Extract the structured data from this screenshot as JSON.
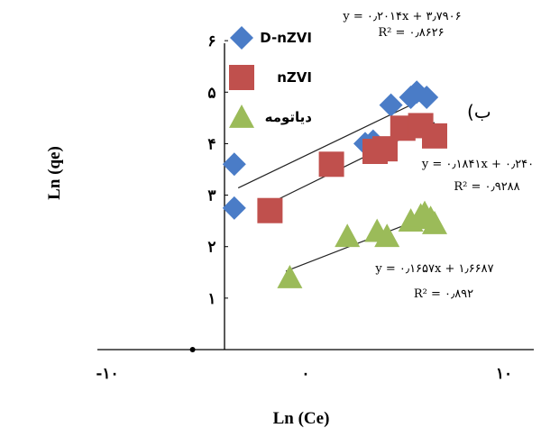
{
  "chart_data": {
    "type": "scatter",
    "title": "",
    "xlabel": "Ln (Ce)",
    "ylabel": "Ln (qe)",
    "xlim": [
      -10.5,
      11.5
    ],
    "ylim": [
      0,
      6.3
    ],
    "panel_label": "(ب",
    "x_tick_labels": [
      "-۱۰",
      "۰",
      "۱۰"
    ],
    "x_ticks": [
      -10,
      0,
      10
    ],
    "y_tick_labels": [
      "۱",
      "۲",
      "۳",
      "۴",
      "۵",
      "۶"
    ],
    "y_ticks": [
      1,
      2,
      3,
      4,
      5,
      6
    ],
    "origin_marker": [
      -5.7,
      0
    ],
    "legend_position": "top-left",
    "series": [
      {
        "name": "D-nZVI",
        "marker": "diamond",
        "color": "#4a7cc7",
        "points": [
          [
            -3.6,
            2.75
          ],
          [
            -3.6,
            3.6
          ],
          [
            3.0,
            4.0
          ],
          [
            3.4,
            4.05
          ],
          [
            4.3,
            4.75
          ],
          [
            5.3,
            4.9
          ],
          [
            5.6,
            5.0
          ],
          [
            6.1,
            4.9
          ]
        ],
        "fit": {
          "equation": "y = ۰٫۲۰۱۴x + ۳٫۷۹۰۶",
          "r2": "R² = ۰٫۸۶۲۶",
          "x_range": [
            -3.4,
            5.8
          ]
        }
      },
      {
        "name": "nZVI",
        "marker": "square",
        "color": "#c0504d",
        "points": [
          [
            -1.8,
            2.7
          ],
          [
            1.3,
            3.6
          ],
          [
            3.5,
            3.85
          ],
          [
            4.0,
            3.9
          ],
          [
            4.9,
            4.3
          ],
          [
            5.8,
            4.35
          ],
          [
            6.5,
            4.15
          ]
        ],
        "fit": {
          "equation": "y = ۰٫۱۸۴۱x + ۰٫۲۴۰",
          "r2": "R² = ۰٫۹۲۸۸",
          "x_range": [
            -1.8,
            6.5
          ]
        }
      },
      {
        "name": "دیاتومه",
        "marker": "triangle",
        "color": "#9bbb59",
        "points": [
          [
            -0.8,
            1.4
          ],
          [
            2.1,
            2.2
          ],
          [
            3.6,
            2.3
          ],
          [
            4.1,
            2.2
          ],
          [
            5.3,
            2.5
          ],
          [
            5.8,
            2.6
          ],
          [
            6.0,
            2.65
          ],
          [
            6.3,
            2.55
          ],
          [
            6.5,
            2.45
          ]
        ],
        "fit": {
          "equation": "y = ۰٫۱۶۵۷x + ۱٫۶۶۸۷",
          "r2": "R² = ۰٫۸۹۲",
          "x_range": [
            -1.0,
            6.5
          ]
        }
      }
    ]
  }
}
